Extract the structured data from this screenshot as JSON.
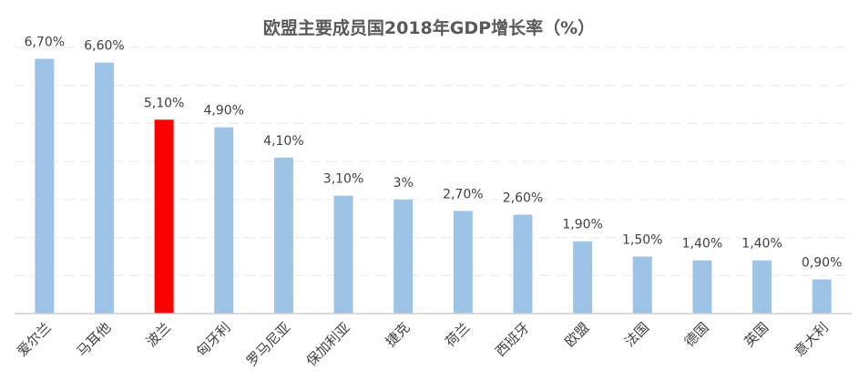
{
  "chart_data": {
    "type": "bar",
    "title": "欧盟主要成员国2018年GDP增长率（%）",
    "xlabel": "",
    "ylabel": "",
    "ylim": [
      0,
      7
    ],
    "grid": true,
    "categories": [
      "爱尔兰",
      "马耳他",
      "波兰",
      "匈牙利",
      "罗马尼亚",
      "保加利亚",
      "捷克",
      "荷兰",
      "西班牙",
      "欧盟",
      "法国",
      "德国",
      "英国",
      "意大利"
    ],
    "values": [
      6.7,
      6.6,
      5.1,
      4.9,
      4.1,
      3.1,
      3.0,
      2.7,
      2.6,
      1.9,
      1.5,
      1.4,
      1.4,
      0.9
    ],
    "data_labels": [
      "6,70%",
      "6,60%",
      "5,10%",
      "4,90%",
      "4,10%",
      "3,10%",
      "3%",
      "2,70%",
      "2,60%",
      "1,90%",
      "1,50%",
      "1,40%",
      "1,40%",
      "0,90%"
    ],
    "colors": {
      "default": "#9DC3E6",
      "highlight": "#FF0000",
      "highlight_category": "波兰",
      "grid": "#EDEDED",
      "axis": "#D0D0D0"
    }
  }
}
